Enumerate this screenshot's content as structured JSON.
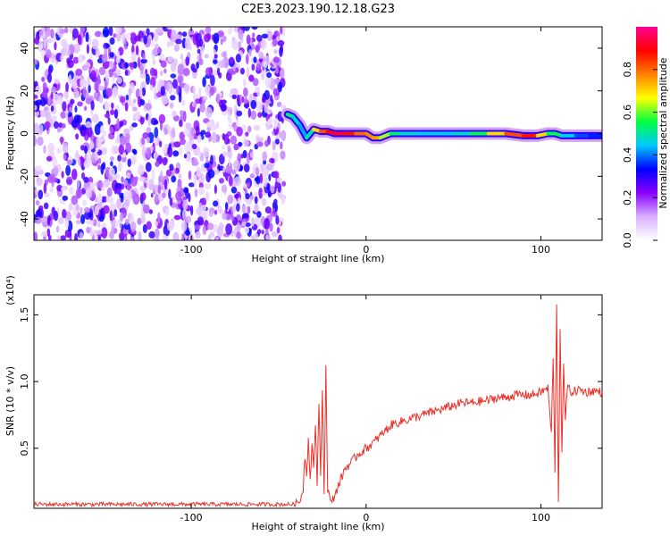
{
  "figure_title": "C2E3.2023.190.12.18.G23",
  "chart_data": [
    {
      "type": "heatmap",
      "title": "C2E3.2023.190.12.18.G23",
      "xlabel": "Height of straight line (km)",
      "ylabel": "Frequency (Hz)",
      "xlim": [
        -190,
        135
      ],
      "ylim": [
        -50,
        50
      ],
      "x_ticks": [
        -100,
        0,
        100
      ],
      "y_ticks": [
        -40,
        -20,
        0,
        20,
        40
      ],
      "colorbar": {
        "label": "Normalized spectral amplitude",
        "range": [
          0,
          1
        ],
        "ticks": [
          "0.0",
          "0.2",
          "0.4",
          "0.6",
          "0.8"
        ],
        "colors": [
          "#ffffff",
          "#d8b0ff",
          "#8a00ff",
          "#0000ff",
          "#00c8ff",
          "#00ff40",
          "#ffff00",
          "#ff8000",
          "#ff0000",
          "#ff0090"
        ]
      },
      "noise_region": {
        "x_range": [
          -190,
          -47
        ],
        "freq_range": [
          -50,
          50
        ],
        "level_range": [
          0.05,
          0.35
        ]
      },
      "ridge": {
        "x": [
          -45,
          -42,
          -38,
          -34,
          -30,
          -26,
          -22,
          -18,
          -12,
          -6,
          0,
          4,
          8,
          14,
          20,
          30,
          40,
          50,
          60,
          70,
          80,
          90,
          98,
          104,
          108,
          112,
          120,
          128,
          135
        ],
        "freq": [
          9,
          8,
          4,
          -2,
          2,
          1,
          1,
          0,
          0,
          0,
          0,
          -2,
          -2,
          0,
          0,
          0,
          0,
          0,
          0,
          0,
          0,
          -1,
          -1,
          0,
          0,
          -1,
          -1,
          -1,
          -1
        ],
        "level": [
          0.55,
          0.5,
          0.45,
          0.4,
          0.6,
          0.8,
          0.85,
          0.95,
          0.9,
          0.85,
          0.75,
          0.8,
          0.7,
          0.55,
          0.5,
          0.45,
          0.45,
          0.45,
          0.5,
          0.6,
          0.8,
          0.85,
          0.9,
          0.5,
          0.6,
          0.5,
          0.4,
          0.35,
          0.35
        ]
      }
    },
    {
      "type": "line",
      "xlabel": "Height of straight line (km)",
      "ylabel": "SNR (10 * v/v)",
      "y_scale_note": "(x10⁴)",
      "xlim": [
        -190,
        135
      ],
      "ylim": [
        0.05,
        1.65
      ],
      "x_ticks": [
        -100,
        0,
        100
      ],
      "y_ticks": [
        0.5,
        1.0,
        1.5
      ],
      "y_tick_labels": [
        "0.5",
        "1.0",
        "1.5"
      ],
      "color": "#e8312a",
      "series": [
        {
          "x": [
            -190,
            -150,
            -100,
            -60,
            -40,
            -38,
            -36,
            -35,
            -34,
            -33,
            -32,
            -31,
            -30,
            -29,
            -28,
            -27,
            -26,
            -25,
            -24,
            -23,
            -22,
            -20,
            -18,
            -15,
            -12,
            -8,
            -5,
            0,
            5,
            10,
            15,
            20,
            25,
            30,
            35,
            40,
            45,
            50,
            55,
            60,
            65,
            70,
            75,
            80,
            85,
            90,
            95,
            100,
            104,
            106,
            107,
            108,
            109,
            110,
            111,
            112,
            113,
            114,
            115,
            118,
            122,
            126,
            130,
            135
          ],
          "y": [
            0.08,
            0.08,
            0.08,
            0.08,
            0.08,
            0.1,
            0.2,
            0.45,
            0.3,
            0.6,
            0.25,
            0.55,
            0.35,
            0.7,
            0.2,
            0.85,
            0.3,
            0.95,
            0.15,
            1.1,
            0.2,
            0.08,
            0.15,
            0.25,
            0.35,
            0.4,
            0.45,
            0.5,
            0.55,
            0.62,
            0.68,
            0.7,
            0.72,
            0.74,
            0.76,
            0.78,
            0.8,
            0.82,
            0.84,
            0.84,
            0.85,
            0.86,
            0.88,
            0.88,
            0.9,
            0.9,
            0.9,
            0.92,
            0.95,
            0.6,
            1.2,
            0.3,
            1.6,
            0.1,
            1.4,
            0.5,
            1.1,
            0.7,
            0.95,
            0.92,
            0.94,
            0.92,
            0.93,
            0.92
          ]
        }
      ]
    }
  ]
}
